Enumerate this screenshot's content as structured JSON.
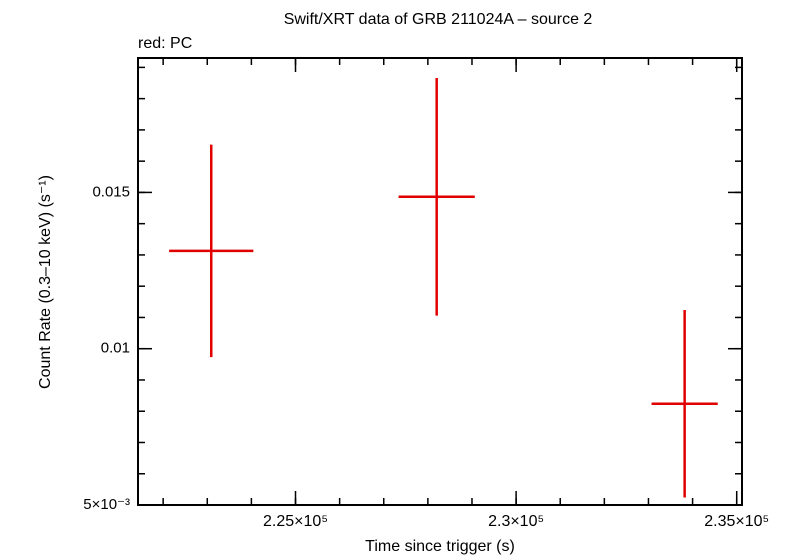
{
  "chart_data": {
    "type": "errorbar_scatter",
    "title": "Swift/XRT data of GRB 211024A – source 2",
    "subtitle": "red: PC",
    "x_label": "Time since trigger (s)",
    "y_label": "Count Rate (0.3–10 keV) (s⁻¹)",
    "xlim": [
      221430,
      235120
    ],
    "ylim": [
      0.005,
      0.0193
    ],
    "xticks": [
      {
        "value": 225000,
        "label": "2.25×10⁵"
      },
      {
        "value": 230000,
        "label": "2.3×10⁵"
      },
      {
        "value": 235000,
        "label": "2.35×10⁵"
      }
    ],
    "yticks": [
      {
        "value": 0.005,
        "label": "5×10⁻³"
      },
      0.01,
      0.015
    ],
    "series": [
      {
        "name": "PC",
        "color": "#e00000",
        "x": [
          223090,
          228200,
          233820
        ],
        "xerr": [
          955,
          864,
          750
        ],
        "values": [
          0.01313,
          0.01486,
          0.00824
        ],
        "yerr": [
          0.0034,
          0.0038,
          0.003
        ]
      }
    ]
  }
}
